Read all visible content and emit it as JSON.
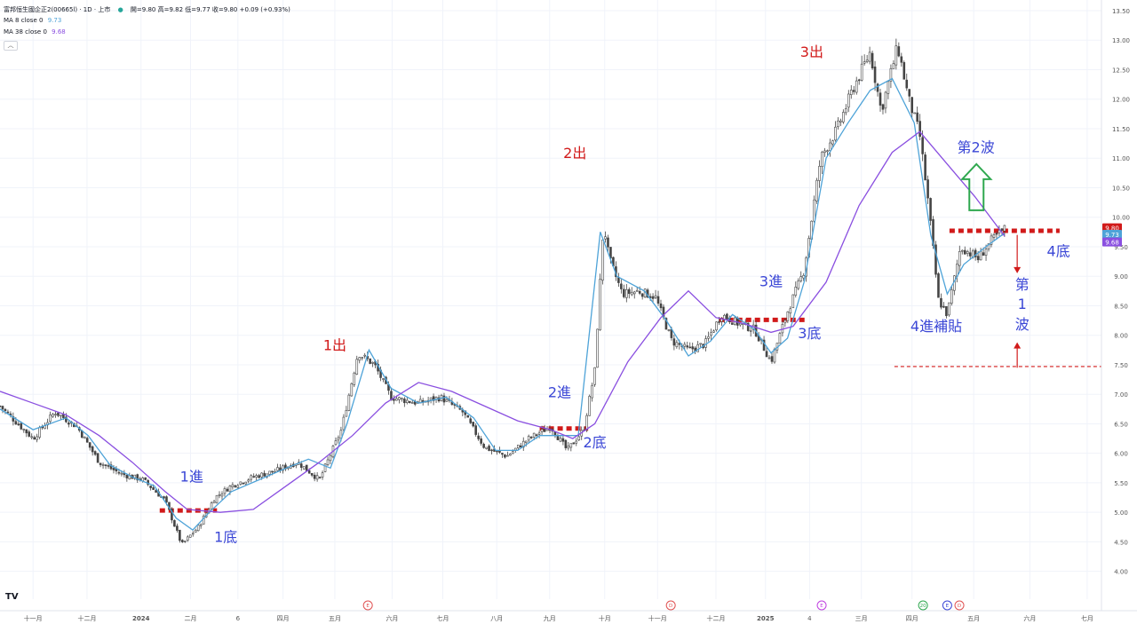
{
  "header": {
    "symbol": "富邦恒生國企正2(00665l) · 1D · 上市",
    "ohlc": "開=9.80 高=9.82 低=9.77 收=9.80 +0.09 (+0.93%)",
    "ma8_label": "MA 8 close 0",
    "ma8_value": "9.73",
    "ma38_label": "MA 38 close 0",
    "ma38_value": "9.68"
  },
  "logo": "TV",
  "colors": {
    "up": "#26a69a",
    "candle": "#444444",
    "ma8": "#4ea3d8",
    "ma38": "#8a4fe0",
    "red": "#d11a1a",
    "blue": "#3b47d6",
    "green": "#2fa84f",
    "bg": "#ffffff",
    "grid": "#f0f3fa"
  },
  "chart_data": {
    "type": "candlestick",
    "title": "富邦恒生國企正2(00665l) · 1D · 上市",
    "ylim": [
      3.8,
      13.6
    ],
    "y_ticks": [
      "13.50",
      "13.00",
      "12.50",
      "12.00",
      "11.50",
      "11.00",
      "10.50",
      "10.00",
      "9.50",
      "9.00",
      "8.50",
      "8.00",
      "7.50",
      "7.00",
      "6.50",
      "6.00",
      "5.50",
      "5.00",
      "4.50",
      "4.00"
    ],
    "x_ticks": [
      {
        "label": "十一月",
        "t": 0.03
      },
      {
        "label": "十二月",
        "t": 0.079
      },
      {
        "label": "2024",
        "t": 0.128
      },
      {
        "label": "二月",
        "t": 0.173
      },
      {
        "label": "6",
        "t": 0.216
      },
      {
        "label": "四月",
        "t": 0.257
      },
      {
        "label": "五月",
        "t": 0.304
      },
      {
        "label": "六月",
        "t": 0.356
      },
      {
        "label": "七月",
        "t": 0.402
      },
      {
        "label": "八月",
        "t": 0.451
      },
      {
        "label": "九月",
        "t": 0.499
      },
      {
        "label": "十月",
        "t": 0.549
      },
      {
        "label": "十一月",
        "t": 0.597
      },
      {
        "label": "十二月",
        "t": 0.65
      },
      {
        "label": "2025",
        "t": 0.695
      },
      {
        "label": "4",
        "t": 0.735
      },
      {
        "label": "三月",
        "t": 0.782
      },
      {
        "label": "四月",
        "t": 0.828
      },
      {
        "label": "五月",
        "t": 0.884
      },
      {
        "label": "六月",
        "t": 0.935
      },
      {
        "label": "七月",
        "t": 0.987
      }
    ],
    "price_series": [
      [
        0,
        6.8
      ],
      [
        0.03,
        6.25
      ],
      [
        0.05,
        6.7
      ],
      [
        0.07,
        6.45
      ],
      [
        0.09,
        5.85
      ],
      [
        0.11,
        5.65
      ],
      [
        0.13,
        5.55
      ],
      [
        0.15,
        5.2
      ],
      [
        0.165,
        4.45
      ],
      [
        0.18,
        4.75
      ],
      [
        0.195,
        5.25
      ],
      [
        0.21,
        5.45
      ],
      [
        0.23,
        5.6
      ],
      [
        0.25,
        5.7
      ],
      [
        0.27,
        5.85
      ],
      [
        0.29,
        5.55
      ],
      [
        0.31,
        6.4
      ],
      [
        0.325,
        7.7
      ],
      [
        0.34,
        7.5
      ],
      [
        0.355,
        6.95
      ],
      [
        0.38,
        6.85
      ],
      [
        0.4,
        6.95
      ],
      [
        0.42,
        6.7
      ],
      [
        0.44,
        6.1
      ],
      [
        0.46,
        5.95
      ],
      [
        0.48,
        6.25
      ],
      [
        0.5,
        6.45
      ],
      [
        0.515,
        6.05
      ],
      [
        0.53,
        6.4
      ],
      [
        0.54,
        7.4
      ],
      [
        0.548,
        9.9
      ],
      [
        0.553,
        9.3
      ],
      [
        0.565,
        8.7
      ],
      [
        0.58,
        8.75
      ],
      [
        0.595,
        8.65
      ],
      [
        0.61,
        7.9
      ],
      [
        0.625,
        7.75
      ],
      [
        0.64,
        7.85
      ],
      [
        0.655,
        8.35
      ],
      [
        0.67,
        8.2
      ],
      [
        0.685,
        8.1
      ],
      [
        0.7,
        7.55
      ],
      [
        0.715,
        8.4
      ],
      [
        0.73,
        9.1
      ],
      [
        0.745,
        11.0
      ],
      [
        0.76,
        11.5
      ],
      [
        0.775,
        12.2
      ],
      [
        0.79,
        12.8
      ],
      [
        0.8,
        11.8
      ],
      [
        0.815,
        12.9
      ],
      [
        0.825,
        12.0
      ],
      [
        0.835,
        11.4
      ],
      [
        0.843,
        10.2
      ],
      [
        0.852,
        8.6
      ],
      [
        0.86,
        8.35
      ],
      [
        0.872,
        9.5
      ],
      [
        0.888,
        9.3
      ],
      [
        0.9,
        9.6
      ],
      [
        0.912,
        9.8
      ]
    ],
    "series": [
      {
        "name": "MA 8 close 0",
        "value_label": "9.73",
        "color": "#4ea3d8",
        "points": [
          [
            0,
            6.75
          ],
          [
            0.03,
            6.4
          ],
          [
            0.06,
            6.6
          ],
          [
            0.08,
            6.3
          ],
          [
            0.1,
            5.8
          ],
          [
            0.12,
            5.6
          ],
          [
            0.14,
            5.45
          ],
          [
            0.16,
            4.9
          ],
          [
            0.175,
            4.7
          ],
          [
            0.19,
            5.0
          ],
          [
            0.21,
            5.35
          ],
          [
            0.235,
            5.55
          ],
          [
            0.26,
            5.75
          ],
          [
            0.28,
            5.9
          ],
          [
            0.3,
            5.75
          ],
          [
            0.315,
            6.5
          ],
          [
            0.335,
            7.75
          ],
          [
            0.355,
            7.1
          ],
          [
            0.38,
            6.85
          ],
          [
            0.405,
            6.95
          ],
          [
            0.43,
            6.6
          ],
          [
            0.45,
            6.05
          ],
          [
            0.47,
            6.05
          ],
          [
            0.49,
            6.3
          ],
          [
            0.51,
            6.3
          ],
          [
            0.525,
            6.3
          ],
          [
            0.545,
            9.75
          ],
          [
            0.56,
            9.0
          ],
          [
            0.585,
            8.75
          ],
          [
            0.605,
            8.25
          ],
          [
            0.625,
            7.65
          ],
          [
            0.645,
            7.9
          ],
          [
            0.665,
            8.35
          ],
          [
            0.685,
            8.1
          ],
          [
            0.7,
            7.7
          ],
          [
            0.715,
            7.95
          ],
          [
            0.73,
            8.9
          ],
          [
            0.75,
            11.0
          ],
          [
            0.77,
            11.6
          ],
          [
            0.79,
            12.15
          ],
          [
            0.81,
            12.35
          ],
          [
            0.83,
            11.6
          ],
          [
            0.845,
            9.7
          ],
          [
            0.86,
            8.7
          ],
          [
            0.875,
            9.2
          ],
          [
            0.895,
            9.5
          ],
          [
            0.912,
            9.73
          ]
        ]
      },
      {
        "name": "MA 38 close 0",
        "value_label": "9.68",
        "color": "#8a4fe0",
        "points": [
          [
            0,
            7.05
          ],
          [
            0.03,
            6.85
          ],
          [
            0.06,
            6.65
          ],
          [
            0.09,
            6.3
          ],
          [
            0.12,
            5.85
          ],
          [
            0.15,
            5.35
          ],
          [
            0.17,
            5.05
          ],
          [
            0.2,
            5.0
          ],
          [
            0.23,
            5.05
          ],
          [
            0.26,
            5.45
          ],
          [
            0.29,
            5.85
          ],
          [
            0.32,
            6.3
          ],
          [
            0.35,
            6.85
          ],
          [
            0.38,
            7.2
          ],
          [
            0.41,
            7.05
          ],
          [
            0.44,
            6.8
          ],
          [
            0.47,
            6.55
          ],
          [
            0.5,
            6.4
          ],
          [
            0.52,
            6.25
          ],
          [
            0.54,
            6.5
          ],
          [
            0.57,
            7.55
          ],
          [
            0.6,
            8.3
          ],
          [
            0.625,
            8.75
          ],
          [
            0.65,
            8.3
          ],
          [
            0.675,
            8.2
          ],
          [
            0.7,
            8.05
          ],
          [
            0.72,
            8.15
          ],
          [
            0.75,
            8.9
          ],
          [
            0.78,
            10.2
          ],
          [
            0.81,
            11.1
          ],
          [
            0.835,
            11.45
          ],
          [
            0.86,
            10.9
          ],
          [
            0.885,
            10.35
          ],
          [
            0.912,
            9.68
          ]
        ]
      }
    ],
    "volume_events": [
      {
        "t": 0.334,
        "label": "E",
        "color": "#e05252"
      },
      {
        "t": 0.609,
        "label": "D",
        "color": "#e05252"
      },
      {
        "t": 0.746,
        "label": "E",
        "color": "#c040e0"
      },
      {
        "t": 0.838,
        "label": "20",
        "color": "#2fa84f"
      },
      {
        "t": 0.86,
        "label": "E",
        "color": "#3b47d6"
      },
      {
        "t": 0.871,
        "label": "D",
        "color": "#e05252"
      }
    ],
    "price_labels": [
      {
        "text": "9.80",
        "price": 9.82,
        "color": "#d11a1a"
      },
      {
        "text": "9.73",
        "price": 9.71,
        "color": "#4ea3d8"
      },
      {
        "text": "9.68",
        "price": 9.58,
        "color": "#8a4fe0"
      }
    ],
    "annotations": [
      {
        "text": "1進",
        "t": 0.174,
        "price": 5.52,
        "color": "#3b47d6"
      },
      {
        "text": "1底",
        "t": 0.205,
        "price": 4.5,
        "color": "#3b47d6"
      },
      {
        "text": "1出",
        "t": 0.304,
        "price": 7.75,
        "color": "#d11a1a"
      },
      {
        "text": "2出",
        "t": 0.522,
        "price": 11.0,
        "color": "#d11a1a"
      },
      {
        "text": "2進",
        "t": 0.508,
        "price": 6.95,
        "color": "#3b47d6"
      },
      {
        "text": "2底",
        "t": 0.54,
        "price": 6.1,
        "color": "#3b47d6"
      },
      {
        "text": "3出",
        "t": 0.737,
        "price": 12.72,
        "color": "#d11a1a"
      },
      {
        "text": "3進",
        "t": 0.7,
        "price": 8.83,
        "color": "#3b47d6"
      },
      {
        "text": "3底",
        "t": 0.735,
        "price": 7.95,
        "color": "#3b47d6"
      },
      {
        "text": "第2波",
        "t": 0.886,
        "price": 11.1,
        "color": "#3b47d6"
      },
      {
        "text": "4底",
        "t": 0.961,
        "price": 9.34,
        "color": "#3b47d6"
      },
      {
        "text": "4進補貼",
        "t": 0.85,
        "price": 8.07,
        "color": "#3b47d6"
      },
      {
        "text": "第",
        "t": 0.928,
        "price": 8.78,
        "color": "#3b47d6"
      },
      {
        "text": "1",
        "t": 0.928,
        "price": 8.45,
        "color": "#3b47d6"
      },
      {
        "text": "波",
        "t": 0.928,
        "price": 8.1,
        "color": "#3b47d6"
      }
    ],
    "levels": [
      {
        "name": "1底",
        "t_start": 0.145,
        "t_end": 0.197,
        "price": 5.03,
        "color": "#d11a1a",
        "style": "dotted-heavy"
      },
      {
        "name": "2底",
        "t_start": 0.49,
        "t_end": 0.534,
        "price": 6.42,
        "color": "#d11a1a",
        "style": "dotted-heavy"
      },
      {
        "name": "3底",
        "t_start": 0.653,
        "t_end": 0.731,
        "price": 8.26,
        "color": "#d11a1a",
        "style": "dotted-heavy"
      },
      {
        "name": "4底",
        "t_start": 0.862,
        "t_end": 0.962,
        "price": 9.77,
        "color": "#d11a1a",
        "style": "dotted-heavy"
      },
      {
        "name": "第1波-底",
        "t_start": 0.812,
        "t_end": 1.0,
        "price": 7.47,
        "color": "#d11a1a",
        "style": "dashed"
      }
    ]
  }
}
